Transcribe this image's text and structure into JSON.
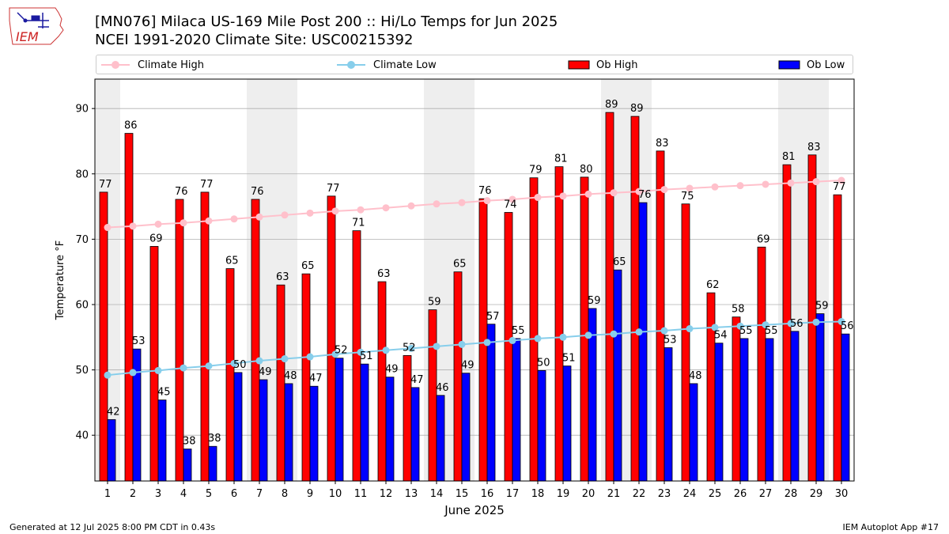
{
  "title_line1": "[MN076] Milaca US-169 Mile Post 200 :: Hi/Lo Temps for Jun 2025",
  "title_line2": "NCEI 1991-2020 Climate Site: USC00215392",
  "logo_text": "IEM",
  "footer_left": "Generated at 12 Jul 2025 8:00 PM CDT in 0.43s",
  "footer_right": "IEM Autoplot App #17",
  "colors": {
    "climate_high": "#ffc0cb",
    "climate_low": "#87ceeb",
    "ob_high": "#ff0000",
    "ob_low": "#0000ff",
    "weekend_band": "#eeeeee",
    "grid": "#b0b0b0"
  },
  "legend": [
    {
      "label": "Climate High",
      "kind": "line",
      "color": "#ffc0cb"
    },
    {
      "label": "Climate Low",
      "kind": "line",
      "color": "#87ceeb"
    },
    {
      "label": "Ob High",
      "kind": "bar",
      "color": "#ff0000"
    },
    {
      "label": "Ob Low",
      "kind": "bar",
      "color": "#0000ff"
    }
  ],
  "chart_data": {
    "type": "bar",
    "title": "[MN076] Milaca US-169 Mile Post 200 :: Hi/Lo Temps for Jun 2025",
    "subtitle": "NCEI 1991-2020 Climate Site: USC00215392",
    "xlabel": "June 2025",
    "ylabel": "Temperature °F",
    "ylim": [
      33,
      94.5
    ],
    "yticks": [
      40,
      50,
      60,
      70,
      80,
      90
    ],
    "grid": "horizontal",
    "legend_position": "top",
    "categories": [
      "1",
      "2",
      "3",
      "4",
      "5",
      "6",
      "7",
      "8",
      "9",
      "10",
      "11",
      "12",
      "13",
      "14",
      "15",
      "16",
      "17",
      "18",
      "19",
      "20",
      "21",
      "22",
      "23",
      "24",
      "25",
      "26",
      "27",
      "28",
      "29",
      "30"
    ],
    "weekend_days": [
      1,
      7,
      8,
      14,
      15,
      21,
      22,
      28,
      29
    ],
    "series": [
      {
        "name": "Ob High",
        "kind": "bar",
        "values": [
          77.2,
          86.2,
          68.9,
          76.1,
          77.2,
          65.5,
          76.1,
          63.0,
          64.7,
          76.6,
          71.3,
          63.5,
          52.2,
          59.2,
          65.0,
          76.2,
          74.1,
          79.4,
          81.1,
          79.5,
          89.4,
          88.8,
          83.5,
          75.4,
          61.8,
          58.1,
          68.8,
          81.4,
          82.9,
          76.8
        ],
        "labels": [
          "77",
          "86",
          "69",
          "76",
          "77",
          "65",
          "76",
          "63",
          "65",
          "77",
          "71",
          "63",
          "52",
          "59",
          "65",
          "76",
          "74",
          "79",
          "81",
          "80",
          "89",
          "89",
          "83",
          "75",
          "62",
          "58",
          "69",
          "81",
          "83",
          "77"
        ]
      },
      {
        "name": "Ob Low",
        "kind": "bar",
        "values": [
          42.4,
          53.2,
          45.4,
          37.9,
          38.3,
          49.6,
          48.5,
          47.9,
          47.5,
          51.8,
          50.9,
          48.9,
          47.3,
          46.1,
          49.5,
          57.0,
          54.8,
          49.9,
          50.6,
          59.4,
          65.3,
          75.6,
          53.4,
          47.9,
          54.1,
          54.8,
          54.8,
          55.9,
          58.6,
          55.5
        ],
        "labels": [
          "42",
          "53",
          "45",
          "38",
          "38",
          "50",
          "49",
          "48",
          "47",
          "52",
          "51",
          "49",
          "47",
          "46",
          "49",
          "57",
          "55",
          "50",
          "51",
          "59",
          "65",
          "76",
          "53",
          "48",
          "54",
          "55",
          "55",
          "56",
          "59",
          "56"
        ]
      },
      {
        "name": "Climate High",
        "kind": "line",
        "values": [
          71.8,
          72.0,
          72.3,
          72.5,
          72.8,
          73.1,
          73.4,
          73.7,
          74.0,
          74.3,
          74.5,
          74.8,
          75.1,
          75.4,
          75.6,
          75.9,
          76.1,
          76.4,
          76.6,
          76.9,
          77.1,
          77.3,
          77.6,
          77.8,
          78.0,
          78.2,
          78.4,
          78.6,
          78.8,
          79.0
        ]
      },
      {
        "name": "Climate Low",
        "kind": "line",
        "values": [
          49.2,
          49.6,
          49.9,
          50.3,
          50.6,
          51.0,
          51.4,
          51.7,
          52.0,
          52.4,
          52.7,
          53.0,
          53.3,
          53.6,
          53.9,
          54.2,
          54.5,
          54.8,
          55.0,
          55.3,
          55.5,
          55.8,
          56.0,
          56.3,
          56.5,
          56.7,
          56.9,
          57.1,
          57.3,
          57.4
        ]
      }
    ]
  }
}
